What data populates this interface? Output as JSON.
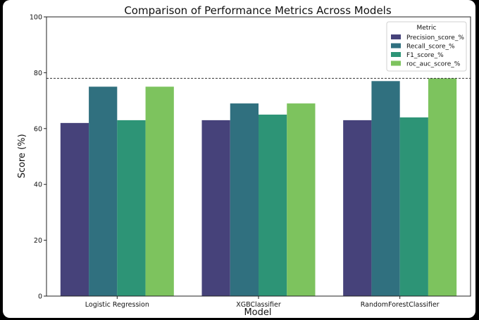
{
  "chart_data": {
    "type": "bar",
    "title": "Comparison of Performance Metrics Across Models",
    "xlabel": "Model",
    "ylabel": "Score (%)",
    "ylim": [
      0,
      100
    ],
    "yticks": [
      0,
      20,
      40,
      60,
      80,
      100
    ],
    "categories": [
      "Logistic Regression",
      "XGBClassifier",
      "RandomForestClassifier"
    ],
    "series": [
      {
        "name": "Precision_score_%",
        "color": "#46427a",
        "values": [
          62,
          63,
          63
        ]
      },
      {
        "name": "Recall_score_%",
        "color": "#30707f",
        "values": [
          75,
          69,
          77
        ]
      },
      {
        "name": "F1_score_%",
        "color": "#2d9476",
        "values": [
          63,
          65,
          64
        ]
      },
      {
        "name": "roc_auc_score_%",
        "color": "#7dc35e",
        "values": [
          75,
          69,
          78
        ]
      }
    ],
    "reference_line": {
      "value": 78,
      "style": "dashed"
    },
    "legend": {
      "title": "Metric",
      "placement": "top-right"
    },
    "grid": false
  }
}
